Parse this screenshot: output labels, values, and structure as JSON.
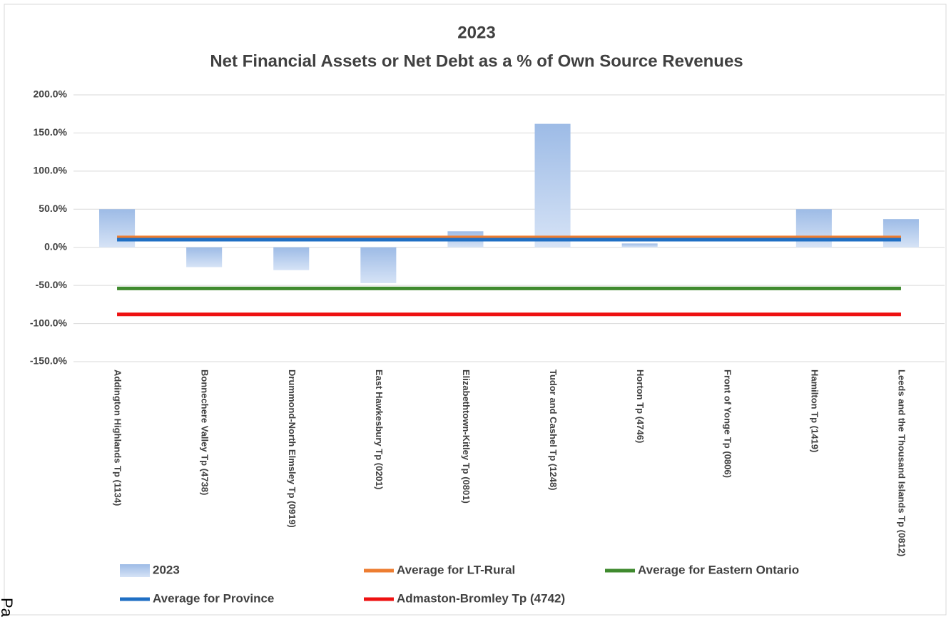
{
  "chart_data": {
    "type": "bar",
    "title": "2023",
    "subtitle": "Net Financial Assets or Net Debt as a % of Own Source Revenues",
    "categories": [
      "Addington Highlands Tp (1134)",
      "Bonnechere Valley Tp (4738)",
      "Drummond-North Elmsley Tp (0919)",
      "East Hawkesbury Tp (0201)",
      "Elizabethtown-Kitley Tp (0801)",
      "Tudor and Cashel Tp (1248)",
      "Horton Tp (4746)",
      "Front of Yonge Tp (0806)",
      "Hamilton Tp (1419)",
      "Leeds and the Thousand Islands Tp (0812)"
    ],
    "series": [
      {
        "name": "2023",
        "type": "bar",
        "color": "#a9c4ea",
        "values": [
          50,
          -26,
          -30,
          -47,
          21,
          162,
          5,
          0,
          50,
          37
        ]
      },
      {
        "name": "Average for LT-Rural",
        "type": "line",
        "color": "#ed7d31",
        "values": [
          13,
          13,
          13,
          13,
          13,
          13,
          13,
          13,
          13,
          13
        ]
      },
      {
        "name": "Average for Eastern Ontario",
        "type": "line",
        "color": "#3f8a2e",
        "values": [
          -54,
          -54,
          -54,
          -54,
          -54,
          -54,
          -54,
          -54,
          -54,
          -54
        ]
      },
      {
        "name": "Average for Province",
        "type": "line",
        "color": "#1f6fc4",
        "values": [
          10,
          10,
          10,
          10,
          10,
          10,
          10,
          10,
          10,
          10
        ]
      },
      {
        "name": "Admaston-Bromley Tp (4742)",
        "type": "line",
        "color": "#ee1111",
        "values": [
          -88,
          -88,
          -88,
          -88,
          -88,
          -88,
          -88,
          -88,
          -88,
          -88
        ]
      }
    ],
    "ylim": [
      -150,
      200
    ],
    "yticks": [
      {
        "value": -150,
        "label": "-150.0%"
      },
      {
        "value": -100,
        "label": "-100.0%"
      },
      {
        "value": -50,
        "label": "-50.0%"
      },
      {
        "value": 0,
        "label": "0.0%"
      },
      {
        "value": 50,
        "label": "50.0%"
      },
      {
        "value": 100,
        "label": "100.0%"
      },
      {
        "value": 150,
        "label": "150.0%"
      },
      {
        "value": 200,
        "label": "200.0%"
      }
    ],
    "grid": true,
    "legend": "bottom",
    "page_fragment": "Pa"
  }
}
